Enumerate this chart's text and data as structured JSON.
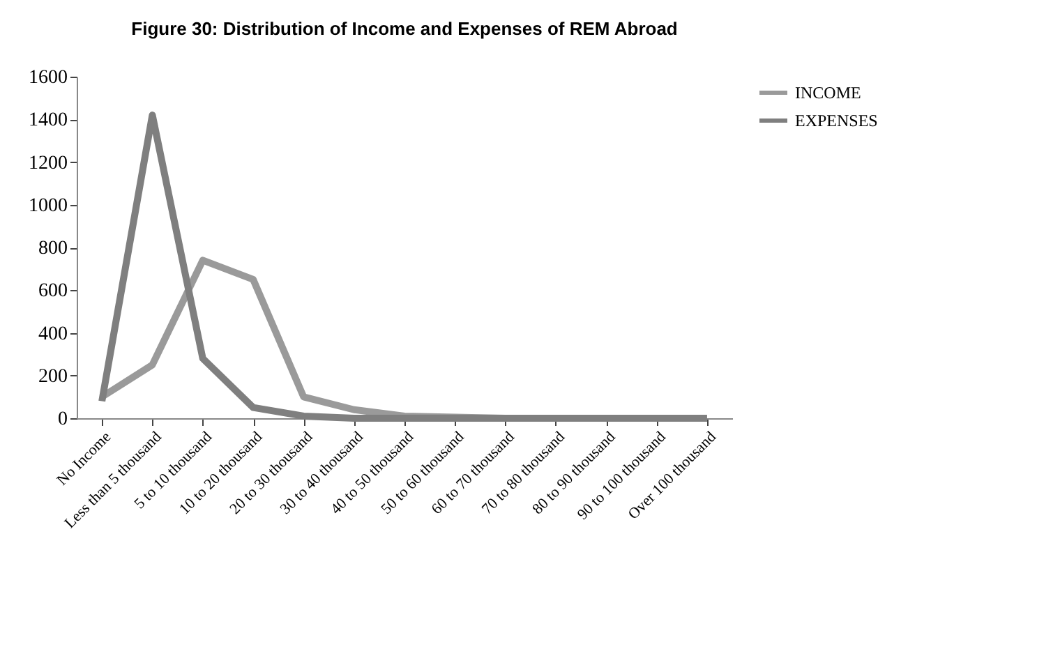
{
  "chart_data": {
    "type": "line",
    "title": "Figure 30: Distribution of Income and Expenses of REM Abroad",
    "categories": [
      "No Income",
      "Less than 5 thousand",
      "5 to 10 thousand",
      "10 to 20 thousand",
      "20 to 30 thousand",
      "30 to 40 thousand",
      "40 to 50 thousand",
      "50 to 60 thousand",
      "60 to 70 thousand",
      "70 to 80 thousand",
      "80 to 90 thousand",
      "90 to 100 thousand",
      "Over 100 thousand"
    ],
    "series": [
      {
        "name": "INCOME",
        "color": "#9a9a9a",
        "values": [
          100,
          250,
          740,
          650,
          100,
          40,
          10,
          5,
          0,
          0,
          0,
          0,
          0
        ]
      },
      {
        "name": "EXPENSES",
        "color": "#7f7f7f",
        "values": [
          80,
          1420,
          280,
          50,
          10,
          0,
          0,
          0,
          0,
          0,
          0,
          0,
          0
        ]
      }
    ],
    "ylim": [
      0,
      1600
    ],
    "yticks": [
      0,
      200,
      400,
      600,
      800,
      1000,
      1200,
      1400,
      1600
    ],
    "grid": false,
    "legend": "right",
    "marker": "none",
    "line_style": "solid"
  }
}
